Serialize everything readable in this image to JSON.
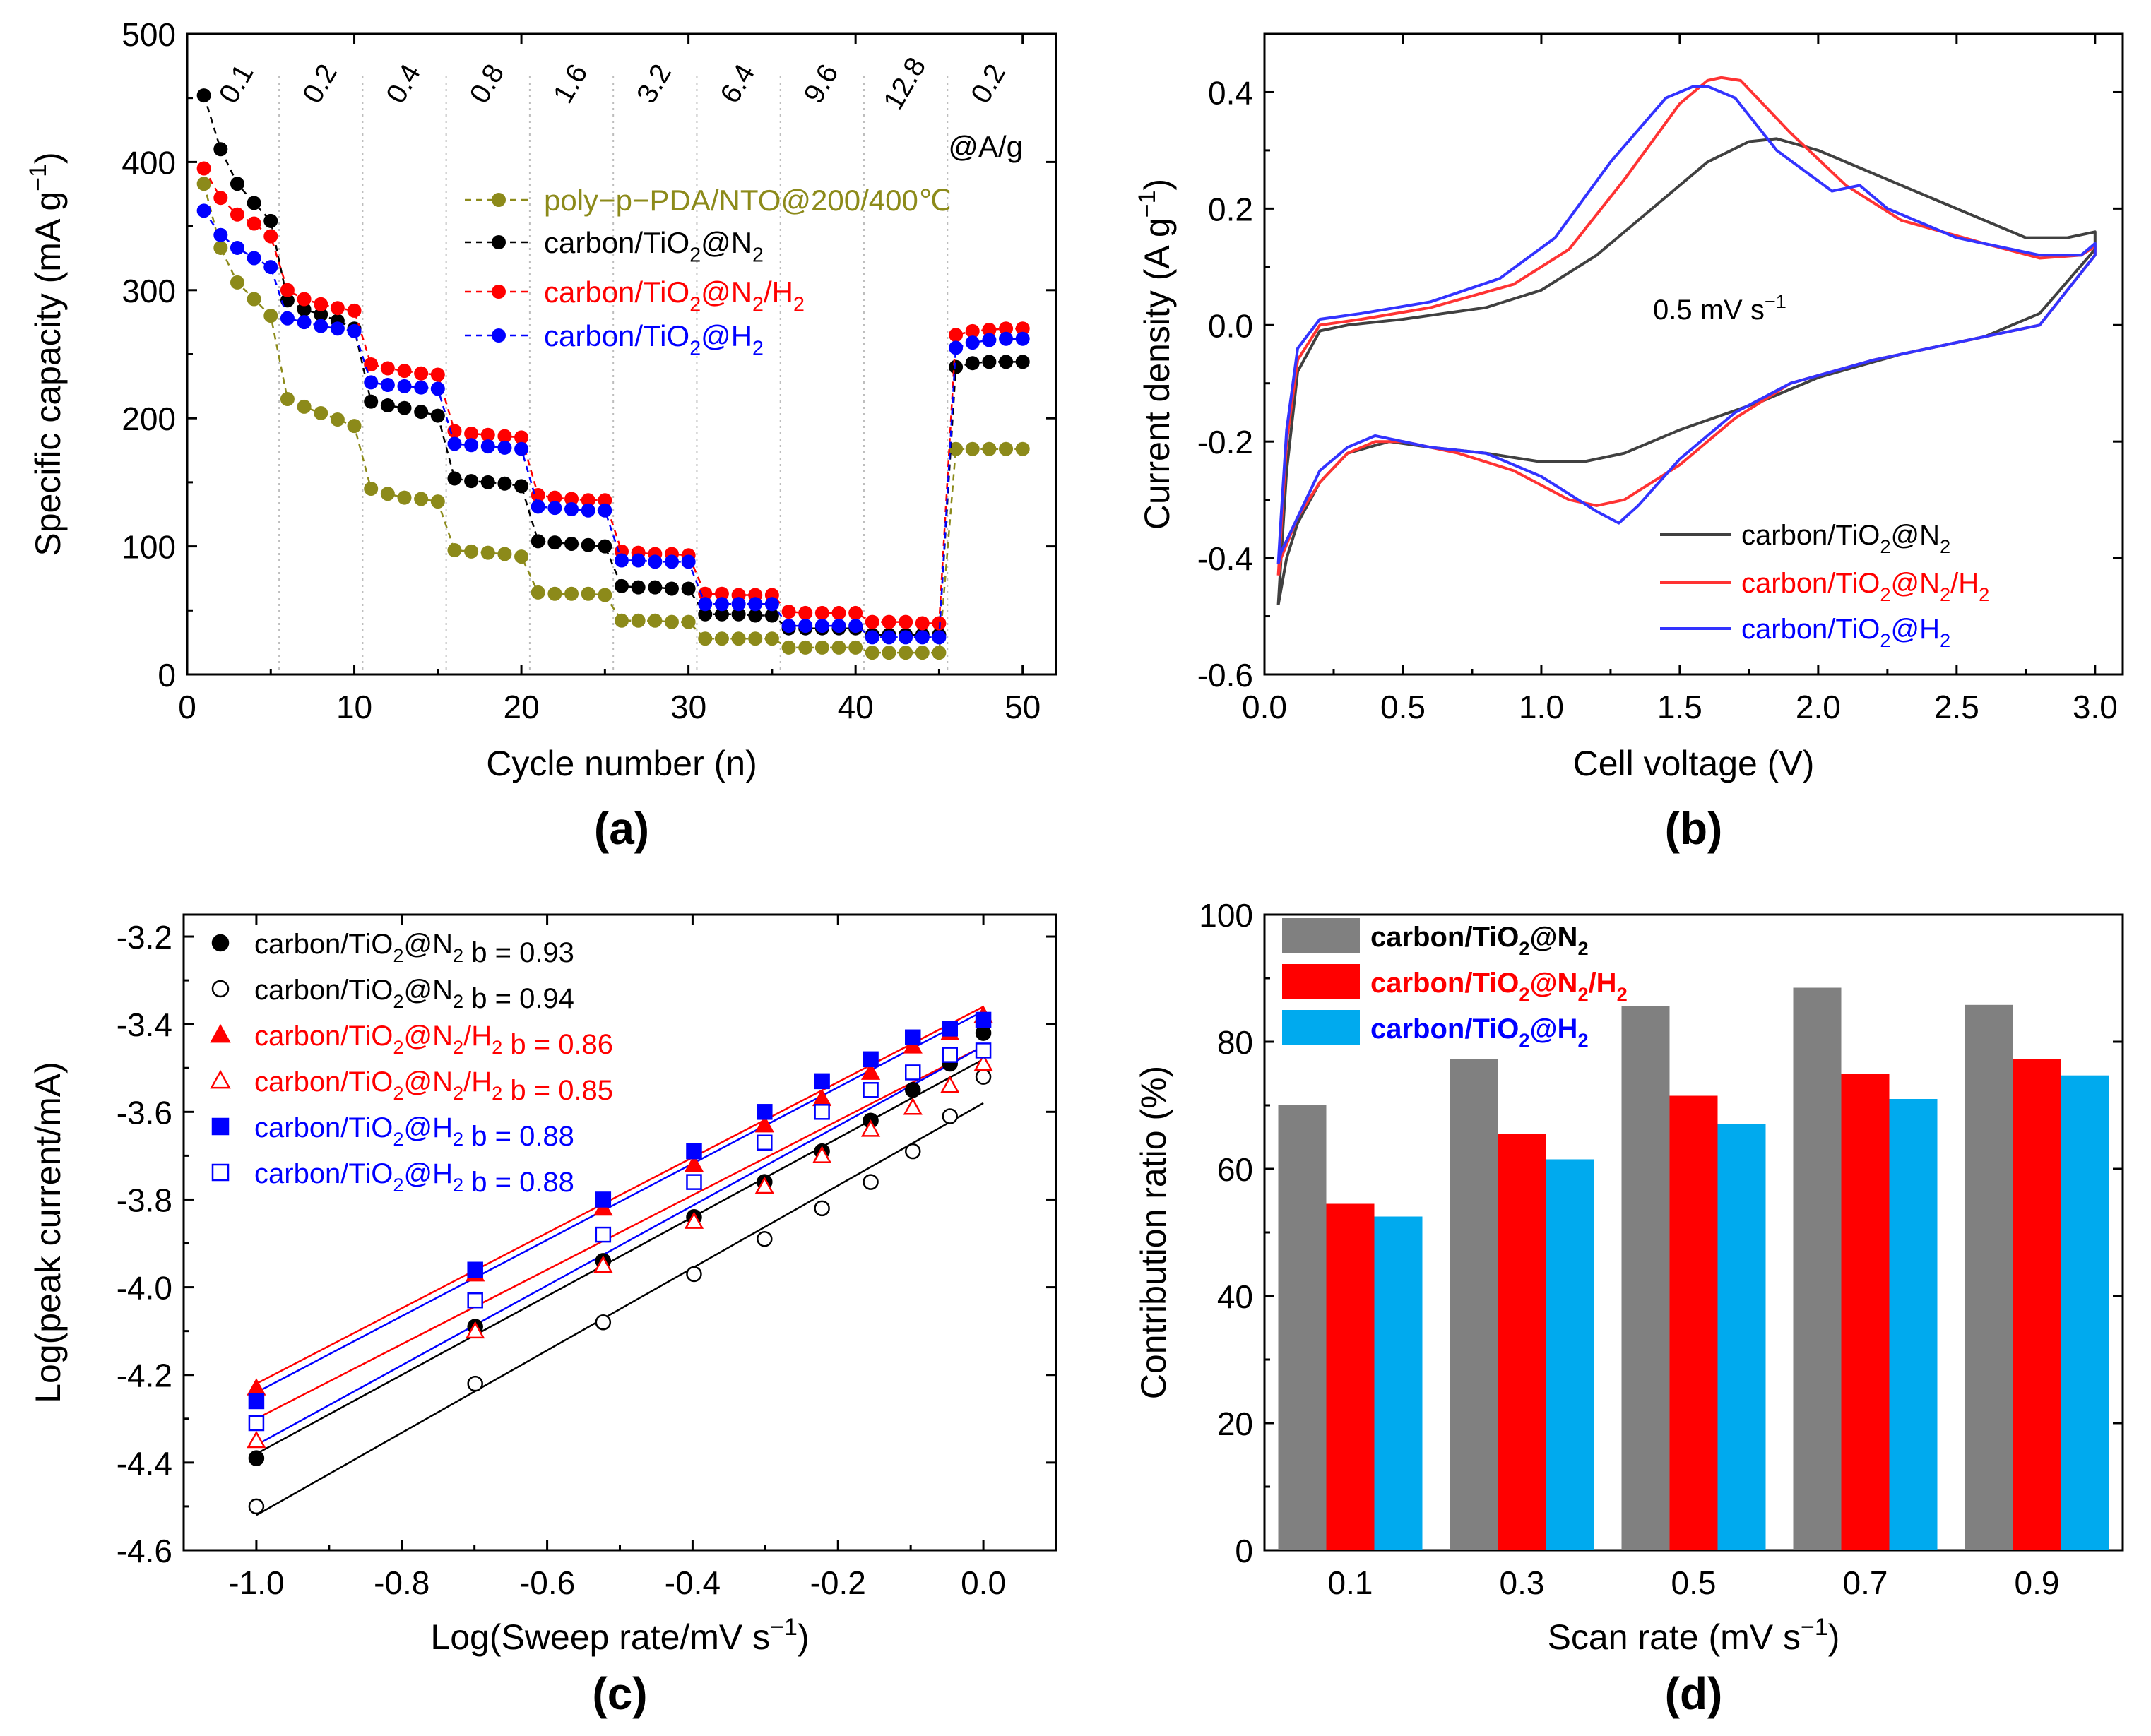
{
  "chart_data": [
    {
      "panel": "(a)",
      "type": "line",
      "xlabel": "Cycle number (n)",
      "ylabel_main": "Specific capacity (mA g",
      "ylabel_sup": "−1",
      "ylabel_end": ")",
      "xlim": [
        0,
        52
      ],
      "ylim": [
        0,
        500
      ],
      "xticks": [
        0,
        10,
        20,
        30,
        40,
        50
      ],
      "yticks": [
        0,
        100,
        200,
        300,
        400,
        500
      ],
      "rate_labels": [
        "0.1",
        "0.2",
        "0.4",
        "0.8",
        "1.6",
        "3.2",
        "6.4",
        "9.6",
        "12.8",
        "0.2"
      ],
      "rate_unit": "@A/g",
      "section_bounds": [
        5.5,
        10.5,
        15.5,
        20.5,
        25.5,
        30.5,
        35.5,
        40.5,
        45.5
      ],
      "legend_position": "center",
      "series": [
        {
          "name": "poly−p−PDA/NTO@200/400℃",
          "legend_main": "poly−p−PDA/NTO@200/400℃",
          "legend_sub": "",
          "legend_mid": "",
          "legend_sub2": "",
          "color": "#8c8a1a",
          "values": [
            383,
            333,
            306,
            293,
            280,
            215,
            209,
            204,
            199,
            194,
            145,
            141,
            138,
            137,
            135,
            97,
            96,
            95,
            94,
            92,
            64,
            63,
            63,
            63,
            62,
            42,
            42,
            42,
            41,
            41,
            28,
            28,
            28,
            28,
            28,
            21,
            21,
            21,
            21,
            21,
            17,
            17,
            17,
            17,
            17,
            176,
            176,
            176,
            176,
            176
          ]
        },
        {
          "name": "carbon/TiO2@N2",
          "legend_main": "carbon/TiO",
          "legend_sub": "2",
          "legend_mid": "@N",
          "legend_sub2": "2",
          "color": "#000000",
          "values": [
            452,
            410,
            383,
            368,
            354,
            292,
            285,
            281,
            276,
            270,
            213,
            210,
            208,
            205,
            202,
            153,
            151,
            150,
            149,
            147,
            104,
            103,
            102,
            101,
            100,
            69,
            68,
            68,
            67,
            67,
            47,
            47,
            47,
            46,
            46,
            36,
            36,
            36,
            36,
            36,
            31,
            31,
            31,
            31,
            31,
            240,
            243,
            244,
            244,
            244
          ]
        },
        {
          "name": "carbon/TiO2@N2/H2",
          "legend_main": "carbon/TiO",
          "legend_sub": "2",
          "legend_mid": "@N",
          "legend_sub2": "2",
          "legend_tail": "/H",
          "legend_sub3": "2",
          "color": "#ff0000",
          "values": [
            395,
            372,
            359,
            352,
            342,
            300,
            293,
            289,
            286,
            284,
            242,
            239,
            237,
            235,
            234,
            190,
            188,
            187,
            186,
            185,
            140,
            138,
            137,
            136,
            136,
            96,
            95,
            94,
            94,
            93,
            63,
            63,
            62,
            62,
            62,
            49,
            48,
            48,
            48,
            48,
            41,
            41,
            41,
            40,
            40,
            265,
            268,
            269,
            270,
            270
          ]
        },
        {
          "name": "carbon/TiO2@H2",
          "legend_main": "carbon/TiO",
          "legend_sub": "2",
          "legend_mid": "@H",
          "legend_sub2": "2",
          "color": "#0000ff",
          "values": [
            362,
            343,
            333,
            325,
            318,
            278,
            275,
            272,
            270,
            268,
            228,
            226,
            225,
            224,
            223,
            180,
            179,
            178,
            177,
            176,
            131,
            130,
            129,
            128,
            128,
            89,
            89,
            88,
            88,
            88,
            55,
            55,
            55,
            55,
            55,
            38,
            38,
            38,
            38,
            38,
            29,
            29,
            29,
            29,
            29,
            255,
            259,
            261,
            262,
            262
          ]
        }
      ]
    },
    {
      "panel": "(b)",
      "type": "line",
      "xlabel": "Cell voltage (V)",
      "ylabel_main": "Current density (A g",
      "ylabel_sup": "−1",
      "ylabel_end": ")",
      "xlim": [
        0.0,
        3.1
      ],
      "ylim": [
        -0.6,
        0.5
      ],
      "xticks": [
        "0.0",
        "0.5",
        "1.0",
        "1.5",
        "2.0",
        "2.5",
        "3.0"
      ],
      "yticks": [
        "-0.6",
        "-0.4",
        "-0.2",
        "0.0",
        "0.2",
        "0.4"
      ],
      "annotation_main": "0.5 mV s",
      "annotation_sup": "−1",
      "legend_position": "bottom-right",
      "series": [
        {
          "name": "carbon/TiO2@N2",
          "legend_main": "carbon/TiO",
          "legend_sub": "2",
          "legend_mid": "@N",
          "legend_sub2": "2",
          "color": "#404040",
          "x": [
            0.05,
            0.06,
            0.08,
            0.12,
            0.2,
            0.3,
            0.5,
            0.8,
            1.0,
            1.2,
            1.4,
            1.6,
            1.75,
            1.85,
            2.0,
            2.2,
            2.5,
            2.75,
            2.9,
            3.0,
            3.0,
            2.8,
            2.6,
            2.3,
            2.0,
            1.8,
            1.5,
            1.3,
            1.15,
            1.0,
            0.8,
            0.6,
            0.45,
            0.3,
            0.2,
            0.12,
            0.08,
            0.05
          ],
          "y": [
            -0.48,
            -0.4,
            -0.25,
            -0.08,
            -0.01,
            0.0,
            0.01,
            0.03,
            0.06,
            0.12,
            0.2,
            0.28,
            0.315,
            0.32,
            0.3,
            0.26,
            0.2,
            0.15,
            0.15,
            0.16,
            0.13,
            0.02,
            -0.02,
            -0.05,
            -0.09,
            -0.13,
            -0.18,
            -0.22,
            -0.235,
            -0.235,
            -0.22,
            -0.21,
            -0.2,
            -0.22,
            -0.27,
            -0.34,
            -0.4,
            -0.48
          ]
        },
        {
          "name": "carbon/TiO2@N2/H2",
          "legend_main": "carbon/TiO",
          "legend_sub": "2",
          "legend_mid": "@N",
          "legend_sub2": "2",
          "legend_tail": "/H",
          "legend_sub3": "2",
          "color": "#ff3333",
          "x": [
            0.05,
            0.06,
            0.08,
            0.12,
            0.2,
            0.35,
            0.6,
            0.9,
            1.1,
            1.3,
            1.5,
            1.6,
            1.65,
            1.72,
            1.9,
            2.1,
            2.3,
            2.6,
            2.8,
            2.95,
            3.0,
            3.0,
            2.8,
            2.5,
            2.2,
            1.9,
            1.7,
            1.5,
            1.3,
            1.2,
            1.1,
            0.9,
            0.7,
            0.5,
            0.4,
            0.3,
            0.2,
            0.12,
            0.06,
            0.05
          ],
          "y": [
            -0.43,
            -0.35,
            -0.2,
            -0.06,
            0.0,
            0.01,
            0.03,
            0.07,
            0.13,
            0.25,
            0.38,
            0.42,
            0.425,
            0.42,
            0.33,
            0.24,
            0.18,
            0.14,
            0.115,
            0.12,
            0.135,
            0.12,
            0.0,
            -0.03,
            -0.06,
            -0.1,
            -0.16,
            -0.24,
            -0.3,
            -0.31,
            -0.3,
            -0.25,
            -0.22,
            -0.2,
            -0.2,
            -0.22,
            -0.27,
            -0.33,
            -0.4,
            -0.43
          ]
        },
        {
          "name": "carbon/TiO2@H2",
          "legend_main": "carbon/TiO",
          "legend_sub": "2",
          "legend_mid": "@H",
          "legend_sub2": "2",
          "color": "#3333ff",
          "x": [
            0.05,
            0.06,
            0.08,
            0.12,
            0.2,
            0.35,
            0.6,
            0.85,
            1.05,
            1.25,
            1.45,
            1.55,
            1.6,
            1.7,
            1.85,
            2.05,
            2.15,
            2.25,
            2.5,
            2.8,
            2.95,
            3.0,
            3.0,
            2.8,
            2.5,
            2.2,
            1.9,
            1.7,
            1.5,
            1.35,
            1.28,
            1.2,
            1.0,
            0.8,
            0.6,
            0.45,
            0.4,
            0.3,
            0.2,
            0.12,
            0.06,
            0.05
          ],
          "y": [
            -0.41,
            -0.33,
            -0.18,
            -0.04,
            0.01,
            0.02,
            0.04,
            0.08,
            0.15,
            0.28,
            0.39,
            0.41,
            0.41,
            0.39,
            0.3,
            0.23,
            0.24,
            0.2,
            0.15,
            0.12,
            0.12,
            0.14,
            0.12,
            0.0,
            -0.03,
            -0.06,
            -0.1,
            -0.15,
            -0.23,
            -0.31,
            -0.34,
            -0.32,
            -0.26,
            -0.22,
            -0.21,
            -0.195,
            -0.19,
            -0.21,
            -0.25,
            -0.33,
            -0.39,
            -0.41
          ]
        }
      ]
    },
    {
      "panel": "(c)",
      "type": "scatter",
      "xlabel_main": "Log(Sweep rate/mV s",
      "xlabel_sup": "−1",
      "xlabel_end": ")",
      "ylabel": "Log(peak current/mA)",
      "xlim": [
        -1.1,
        0.1
      ],
      "ylim": [
        -4.6,
        -3.15
      ],
      "xticks": [
        "-1.0",
        "-0.8",
        "-0.6",
        "-0.4",
        "-0.2",
        "0.0"
      ],
      "yticks": [
        "-4.6",
        "-4.4",
        "-4.2",
        "-4.0",
        "-3.8",
        "-3.6",
        "-3.4",
        "-3.2"
      ],
      "x": [
        -1.0,
        -0.699,
        -0.523,
        -0.398,
        -0.301,
        -0.222,
        -0.155,
        -0.097,
        -0.046,
        0.0
      ],
      "legend_position": "top-left",
      "series": [
        {
          "name": "carbon/TiO2@N2 b = 0.93",
          "legend_main": "carbon/TiO",
          "legend_sub": "2",
          "legend_mid": "@N",
          "legend_sub2": "2",
          "b_label": "b = 0.93",
          "color": "#000000",
          "marker": "filled-circle",
          "values": [
            -4.39,
            -4.09,
            -3.94,
            -3.84,
            -3.76,
            -3.69,
            -3.62,
            -3.55,
            -3.49,
            -3.42
          ],
          "fit": [
            -4.38,
            -3.48
          ]
        },
        {
          "name": "carbon/TiO2@N2 b = 0.94",
          "legend_main": "carbon/TiO",
          "legend_sub": "2",
          "legend_mid": "@N",
          "legend_sub2": "2",
          "b_label": "b = 0.94",
          "color": "#000000",
          "marker": "open-circle",
          "values": [
            -4.5,
            -4.22,
            -4.08,
            -3.97,
            -3.89,
            -3.82,
            -3.76,
            -3.69,
            -3.61,
            -3.52
          ],
          "fit": [
            -4.52,
            -3.58
          ]
        },
        {
          "name": "carbon/TiO2@N2/H2 b = 0.86",
          "legend_main": "carbon/TiO",
          "legend_sub": "2",
          "legend_mid": "@N",
          "legend_sub2": "2",
          "legend_tail": "/H",
          "legend_sub3": "2",
          "b_label": "b = 0.86",
          "color": "#ff0000",
          "marker": "filled-triangle",
          "values": [
            -4.23,
            -3.97,
            -3.82,
            -3.72,
            -3.63,
            -3.57,
            -3.51,
            -3.45,
            -3.42,
            -3.38
          ],
          "fit": [
            -4.22,
            -3.36
          ]
        },
        {
          "name": "carbon/TiO2@N2/H2 b = 0.85",
          "legend_main": "carbon/TiO",
          "legend_sub": "2",
          "legend_mid": "@N",
          "legend_sub2": "2",
          "legend_tail": "/H",
          "legend_sub3": "2",
          "b_label": "b = 0.85",
          "color": "#ff0000",
          "marker": "open-triangle",
          "values": [
            -4.35,
            -4.1,
            -3.95,
            -3.85,
            -3.77,
            -3.7,
            -3.64,
            -3.59,
            -3.54,
            -3.49
          ],
          "fit": [
            -4.3,
            -3.45
          ]
        },
        {
          "name": "carbon/TiO2@H2 b = 0.88",
          "legend_main": "carbon/TiO",
          "legend_sub": "2",
          "legend_mid": "@H",
          "legend_sub2": "2",
          "b_label": "b = 0.88",
          "color": "#0000ff",
          "marker": "filled-square",
          "values": [
            -4.26,
            -3.96,
            -3.8,
            -3.69,
            -3.6,
            -3.53,
            -3.48,
            -3.43,
            -3.41,
            -3.39
          ],
          "fit": [
            -4.24,
            -3.37
          ]
        },
        {
          "name": "carbon/TiO2@H2 b = 0.88",
          "legend_main": "carbon/TiO",
          "legend_sub": "2",
          "legend_mid": "@H",
          "legend_sub2": "2",
          "b_label": "b = 0.88",
          "color": "#0000ff",
          "marker": "open-square",
          "values": [
            -4.31,
            -4.03,
            -3.88,
            -3.76,
            -3.67,
            -3.6,
            -3.55,
            -3.51,
            -3.47,
            -3.46
          ],
          "fit": [
            -4.36,
            -3.45
          ]
        }
      ]
    },
    {
      "panel": "(d)",
      "type": "bar",
      "xlabel_main": "Scan rate (mV s",
      "xlabel_sup": "−1",
      "xlabel_end": ")",
      "ylabel": "Contribution ratio (%)",
      "ylim": [
        0,
        100
      ],
      "yticks": [
        0,
        20,
        40,
        60,
        80,
        100
      ],
      "categories": [
        "0.1",
        "0.3",
        "0.5",
        "0.7",
        "0.9"
      ],
      "legend_position": "top-left",
      "series": [
        {
          "name": "carbon/TiO2@N2",
          "legend_main": "carbon/TiO",
          "legend_sub": "2",
          "legend_mid": "@N",
          "legend_sub2": "2",
          "color": "#808080",
          "values": [
            70.0,
            77.3,
            85.6,
            88.5,
            85.8
          ]
        },
        {
          "name": "carbon/TiO2@N2/H2",
          "legend_main": "carbon/TiO",
          "legend_sub": "2",
          "legend_mid": "@N",
          "legend_sub2": "2",
          "legend_tail": "/H",
          "legend_sub3": "2",
          "color": "#ff0000",
          "values": [
            54.5,
            65.5,
            71.5,
            75.0,
            77.3
          ]
        },
        {
          "name": "carbon/TiO2@H2",
          "legend_main": "carbon/TiO",
          "legend_sub": "2",
          "legend_mid": "@H",
          "legend_sub2": "2",
          "color": "#00aaee",
          "values": [
            52.5,
            61.5,
            67.0,
            71.0,
            74.7
          ]
        }
      ]
    }
  ]
}
